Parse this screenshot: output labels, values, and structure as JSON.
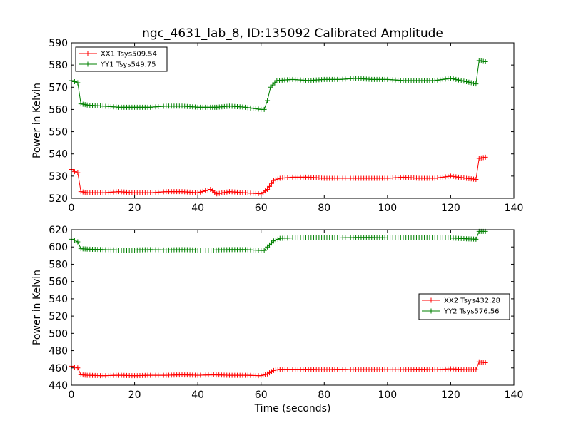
{
  "chart_data": [
    {
      "type": "line",
      "title": "ngc_4631_lab_8, ID:135092 Calibrated Amplitude",
      "xlabel": "",
      "ylabel": "Power in Kelvin",
      "xlim": [
        0,
        140
      ],
      "ylim": [
        520,
        590
      ],
      "xticks": [
        0,
        20,
        40,
        60,
        80,
        100,
        120,
        140
      ],
      "yticks": [
        520,
        530,
        540,
        550,
        560,
        570,
        580,
        590
      ],
      "grid": false,
      "legend_position": "top-left",
      "series": [
        {
          "name": "XX1 Tsys509.54",
          "color": "#ff0000",
          "marker": "+",
          "points": [
            [
              0,
              533
            ],
            [
              1,
              532
            ],
            [
              2,
              531.5
            ],
            [
              3,
              523
            ],
            [
              5,
              522.5
            ],
            [
              10,
              522.5
            ],
            [
              15,
              523
            ],
            [
              20,
              522.5
            ],
            [
              25,
              522.5
            ],
            [
              30,
              523
            ],
            [
              35,
              523
            ],
            [
              40,
              522.5
            ],
            [
              44,
              524
            ],
            [
              46,
              522
            ],
            [
              50,
              523
            ],
            [
              55,
              522.5
            ],
            [
              60,
              522
            ],
            [
              62,
              524
            ],
            [
              64,
              528
            ],
            [
              66,
              529
            ],
            [
              70,
              529.5
            ],
            [
              75,
              529.5
            ],
            [
              80,
              529
            ],
            [
              85,
              529
            ],
            [
              90,
              529
            ],
            [
              95,
              529
            ],
            [
              100,
              529
            ],
            [
              105,
              529.5
            ],
            [
              110,
              529
            ],
            [
              115,
              529
            ],
            [
              120,
              530
            ],
            [
              125,
              529
            ],
            [
              128,
              528.5
            ],
            [
              129,
              538
            ],
            [
              131,
              538.5
            ]
          ]
        },
        {
          "name": "YY1 Tsys549.75",
          "color": "#008000",
          "marker": "+",
          "points": [
            [
              0,
              573
            ],
            [
              1,
              572.5
            ],
            [
              2,
              572
            ],
            [
              3,
              562.5
            ],
            [
              5,
              562
            ],
            [
              10,
              561.5
            ],
            [
              15,
              561
            ],
            [
              20,
              561
            ],
            [
              25,
              561
            ],
            [
              30,
              561.5
            ],
            [
              35,
              561.5
            ],
            [
              40,
              561
            ],
            [
              44,
              561
            ],
            [
              46,
              561
            ],
            [
              50,
              561.5
            ],
            [
              55,
              561
            ],
            [
              60,
              560
            ],
            [
              61,
              560
            ],
            [
              62,
              564
            ],
            [
              63,
              570
            ],
            [
              65,
              573
            ],
            [
              70,
              573.5
            ],
            [
              75,
              573
            ],
            [
              80,
              573.5
            ],
            [
              85,
              573.5
            ],
            [
              90,
              574
            ],
            [
              95,
              573.5
            ],
            [
              100,
              573.5
            ],
            [
              105,
              573
            ],
            [
              110,
              573
            ],
            [
              115,
              573
            ],
            [
              120,
              574
            ],
            [
              125,
              572.5
            ],
            [
              128,
              571.5
            ],
            [
              129,
              582
            ],
            [
              131,
              581.5
            ]
          ]
        }
      ]
    },
    {
      "type": "line",
      "title": "",
      "xlabel": "Time (seconds)",
      "ylabel": "Power in Kelvin",
      "xlim": [
        0,
        140
      ],
      "ylim": [
        440,
        620
      ],
      "xticks": [
        0,
        20,
        40,
        60,
        80,
        100,
        120,
        140
      ],
      "yticks": [
        440,
        460,
        480,
        500,
        520,
        540,
        560,
        580,
        600,
        620
      ],
      "grid": false,
      "legend_position": "center-right",
      "series": [
        {
          "name": "XX2 Tsys432.28",
          "color": "#ff0000",
          "marker": "+",
          "points": [
            [
              0,
              462
            ],
            [
              1,
              461
            ],
            [
              2,
              460
            ],
            [
              3,
              452
            ],
            [
              5,
              451.5
            ],
            [
              10,
              451
            ],
            [
              15,
              451.5
            ],
            [
              20,
              451
            ],
            [
              25,
              451.5
            ],
            [
              30,
              451.5
            ],
            [
              35,
              452
            ],
            [
              40,
              451.5
            ],
            [
              45,
              452
            ],
            [
              50,
              451.5
            ],
            [
              55,
              451.5
            ],
            [
              60,
              451
            ],
            [
              62,
              453
            ],
            [
              64,
              457
            ],
            [
              66,
              458.5
            ],
            [
              70,
              458.5
            ],
            [
              75,
              458.5
            ],
            [
              80,
              458
            ],
            [
              85,
              458.5
            ],
            [
              90,
              458
            ],
            [
              95,
              458
            ],
            [
              100,
              458
            ],
            [
              105,
              458
            ],
            [
              110,
              458.5
            ],
            [
              115,
              458
            ],
            [
              120,
              459
            ],
            [
              125,
              458
            ],
            [
              128,
              458
            ],
            [
              129,
              467
            ],
            [
              131,
              466
            ]
          ]
        },
        {
          "name": "YY2 Tsys576.56",
          "color": "#008000",
          "marker": "+",
          "points": [
            [
              0,
              609
            ],
            [
              1,
              608
            ],
            [
              2,
              606
            ],
            [
              3,
              598
            ],
            [
              5,
              597.5
            ],
            [
              10,
              597
            ],
            [
              15,
              596.5
            ],
            [
              20,
              596.5
            ],
            [
              25,
              597
            ],
            [
              30,
              596.5
            ],
            [
              35,
              597
            ],
            [
              40,
              596.5
            ],
            [
              45,
              596.5
            ],
            [
              50,
              597
            ],
            [
              55,
              597
            ],
            [
              60,
              596
            ],
            [
              61,
              596
            ],
            [
              62,
              600
            ],
            [
              64,
              607
            ],
            [
              66,
              610
            ],
            [
              70,
              610.5
            ],
            [
              75,
              610.5
            ],
            [
              80,
              610.5
            ],
            [
              85,
              610.5
            ],
            [
              90,
              611
            ],
            [
              95,
              611
            ],
            [
              100,
              610.5
            ],
            [
              105,
              610.5
            ],
            [
              110,
              610.5
            ],
            [
              115,
              610.5
            ],
            [
              120,
              610.5
            ],
            [
              125,
              609.5
            ],
            [
              128,
              609
            ],
            [
              129,
              618
            ],
            [
              131,
              618
            ]
          ]
        }
      ]
    }
  ]
}
